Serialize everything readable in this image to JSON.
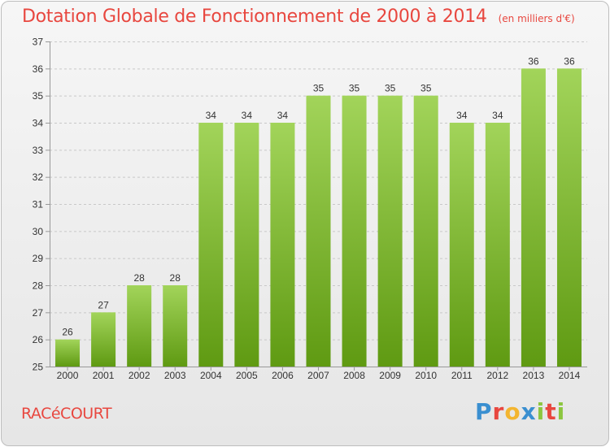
{
  "title": "Dotation Globale de Fonctionnement de 2000 à 2014",
  "unit": "(en milliers d'€)",
  "commune": "RACéCOURT",
  "logo": {
    "letters": [
      {
        "char": "P",
        "color": "#3a8fd0"
      },
      {
        "char": "r",
        "color": "#e8473f"
      },
      {
        "char": "o",
        "color": "#f3b530"
      },
      {
        "char": "x",
        "color": "#3a8fd0"
      },
      {
        "char": "i",
        "color": "#8cc63f"
      },
      {
        "char": "t",
        "color": "#e8473f"
      },
      {
        "char": "i",
        "color": "#8cc63f"
      }
    ]
  },
  "colors": {
    "title": "#e8473f",
    "bar_top": "#a2d45a",
    "bar_bottom": "#5f9a12",
    "grid": "#c8c8c8",
    "axis": "#999999"
  },
  "chart_data": {
    "type": "bar",
    "title": "Dotation Globale de Fonctionnement de 2000 à 2014",
    "xlabel": "",
    "ylabel": "",
    "categories": [
      "2000",
      "2001",
      "2002",
      "2003",
      "2004",
      "2005",
      "2006",
      "2007",
      "2008",
      "2009",
      "2010",
      "2011",
      "2012",
      "2013",
      "2014"
    ],
    "values": [
      26,
      27,
      28,
      28,
      34,
      34,
      34,
      35,
      35,
      35,
      35,
      34,
      34,
      36,
      36
    ],
    "ylim": [
      25,
      37
    ],
    "yticks": [
      "25",
      "26",
      "27",
      "28",
      "29",
      "30",
      "31",
      "32",
      "33",
      "34",
      "35",
      "36",
      "37"
    ],
    "grid": true,
    "legend": "none"
  }
}
